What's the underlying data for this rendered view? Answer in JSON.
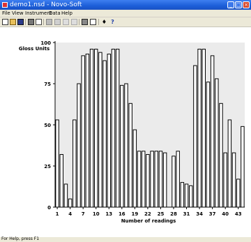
{
  "window": {
    "title": "demo1.nsd - Novo-Soft"
  },
  "menu": [
    {
      "label": "File"
    },
    {
      "label": "View"
    },
    {
      "label": "Instrument"
    },
    {
      "label": "Data"
    },
    {
      "label": "Help"
    }
  ],
  "toolbar": {
    "icons": [
      "new-icon",
      "open-icon",
      "save-icon",
      "print-icon",
      "print-preview-icon",
      "cut-icon",
      "chart-icon",
      "graph-icon",
      "export-icon",
      "table-icon",
      "zoom-icon",
      "instrument-icon",
      "help-icon"
    ]
  },
  "status": {
    "text": "For Help, press F1"
  },
  "colors": {
    "titlebar": "#1c5ed8",
    "chrome": "#ece9d8",
    "plot_bg": "#ebebeb",
    "bar_fill": "#ffffff",
    "bar_stroke": "#000000"
  },
  "chart_data": {
    "type": "bar",
    "ylabel": "Gloss Units",
    "xlabel": "Number of readings",
    "ylim": [
      0,
      100
    ],
    "yticks": [
      0,
      25,
      50,
      75,
      100
    ],
    "xtick_labels": [
      "1",
      "4",
      "7",
      "10",
      "13",
      "16",
      "19",
      "22",
      "25",
      "28",
      "31",
      "34",
      "37",
      "40",
      "43"
    ],
    "x": [
      1,
      2,
      3,
      4,
      5,
      6,
      7,
      8,
      9,
      10,
      11,
      12,
      13,
      14,
      15,
      16,
      17,
      18,
      19,
      20,
      21,
      22,
      23,
      24,
      25,
      26,
      27,
      28,
      29,
      30,
      31,
      32,
      33,
      34,
      35,
      36,
      37,
      38,
      39,
      40,
      41,
      42,
      43,
      44
    ],
    "values": [
      53,
      32,
      14,
      5,
      53,
      75,
      92,
      93,
      96,
      96,
      94,
      89,
      93,
      96,
      96,
      74,
      75,
      63,
      47,
      34,
      34,
      32,
      34,
      34,
      34,
      33,
      0,
      31,
      34,
      15,
      14,
      13,
      86,
      96,
      96,
      76,
      92,
      78,
      63,
      33,
      53,
      33,
      17,
      49
    ],
    "grid": false
  }
}
